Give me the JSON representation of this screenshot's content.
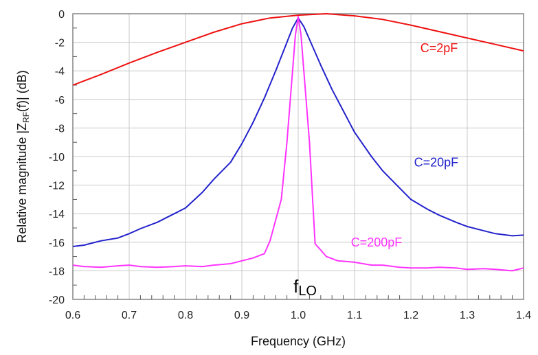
{
  "chart_data": {
    "type": "line",
    "title": "",
    "xlabel": "Frequency (GHz)",
    "ylabel": {
      "prefix": "Relative magnitude |Z",
      "subscript": "RF",
      "suffix": "(f)| (dB)"
    },
    "xlim": [
      0.6,
      1.4
    ],
    "ylim": [
      -20,
      0
    ],
    "x_ticks": [
      0.6,
      0.7,
      0.8,
      0.9,
      1.0,
      1.1,
      1.2,
      1.3,
      1.4
    ],
    "x_tick_labels": [
      "0.6",
      "0.7",
      "0.8",
      "0.9",
      "1.0",
      "1.1",
      "1.2",
      "1.3",
      "1.4"
    ],
    "y_ticks": [
      0,
      -2,
      -4,
      -6,
      -8,
      -10,
      -12,
      -14,
      -16,
      -18,
      -20
    ],
    "y_tick_labels": [
      "0",
      "-2",
      "-4",
      "-6",
      "-8",
      "-10",
      "-12",
      "-14",
      "-16",
      "-18",
      "-20"
    ],
    "grid": true,
    "annotation": {
      "main": "f",
      "sub": "LO",
      "x": 1.0
    },
    "series": [
      {
        "name": "C=2pF",
        "color": "#ee1111",
        "x": [
          0.6,
          0.65,
          0.7,
          0.75,
          0.8,
          0.85,
          0.9,
          0.95,
          1.0,
          1.05,
          1.1,
          1.15,
          1.2,
          1.25,
          1.3,
          1.35,
          1.4
        ],
        "y": [
          -5.0,
          -4.25,
          -3.45,
          -2.7,
          -2.0,
          -1.3,
          -0.7,
          -0.3,
          -0.1,
          0.0,
          -0.15,
          -0.4,
          -0.8,
          -1.25,
          -1.7,
          -2.15,
          -2.6
        ]
      },
      {
        "name": "C=20pF",
        "color": "#2222cc",
        "x": [
          0.6,
          0.62,
          0.65,
          0.68,
          0.7,
          0.72,
          0.75,
          0.78,
          0.8,
          0.83,
          0.85,
          0.88,
          0.9,
          0.92,
          0.94,
          0.96,
          0.98,
          0.99,
          1.0,
          1.01,
          1.02,
          1.04,
          1.06,
          1.08,
          1.1,
          1.13,
          1.15,
          1.18,
          1.2,
          1.23,
          1.25,
          1.28,
          1.3,
          1.33,
          1.35,
          1.38,
          1.4
        ],
        "y": [
          -16.3,
          -16.2,
          -15.9,
          -15.7,
          -15.4,
          -15.05,
          -14.6,
          -14.0,
          -13.6,
          -12.5,
          -11.6,
          -10.4,
          -9.1,
          -7.6,
          -5.9,
          -4.0,
          -2.0,
          -1.0,
          -0.3,
          -0.9,
          -1.8,
          -3.6,
          -5.3,
          -6.8,
          -8.3,
          -10.0,
          -11.0,
          -12.2,
          -13.0,
          -13.7,
          -14.1,
          -14.6,
          -14.9,
          -15.2,
          -15.4,
          -15.55,
          -15.5
        ]
      },
      {
        "name": "C=200pF",
        "color": "#ff33ff",
        "x": [
          0.6,
          0.62,
          0.65,
          0.68,
          0.7,
          0.72,
          0.75,
          0.78,
          0.8,
          0.83,
          0.85,
          0.88,
          0.9,
          0.92,
          0.94,
          0.95,
          0.97,
          0.98,
          0.99,
          0.995,
          1.0,
          1.005,
          1.01,
          1.02,
          1.03,
          1.05,
          1.07,
          1.1,
          1.13,
          1.15,
          1.18,
          1.2,
          1.23,
          1.25,
          1.28,
          1.3,
          1.33,
          1.35,
          1.38,
          1.4
        ],
        "y": [
          -17.6,
          -17.7,
          -17.75,
          -17.65,
          -17.6,
          -17.7,
          -17.75,
          -17.7,
          -17.65,
          -17.7,
          -17.6,
          -17.5,
          -17.3,
          -17.1,
          -16.8,
          -15.9,
          -13.0,
          -9.0,
          -4.0,
          -1.5,
          -0.2,
          -1.5,
          -4.0,
          -9.0,
          -16.1,
          -17.0,
          -17.3,
          -17.4,
          -17.6,
          -17.6,
          -17.75,
          -17.8,
          -17.8,
          -17.75,
          -17.8,
          -17.9,
          -17.85,
          -17.9,
          -18.0,
          -17.8
        ]
      }
    ],
    "series_labels": [
      {
        "text": "C=2pF",
        "x": 1.25,
        "y": -2.7
      },
      {
        "text": "C=20pF",
        "x": 1.245,
        "y": -10.7
      },
      {
        "text": "C=200pF",
        "x": 1.139,
        "y": -16.3
      }
    ]
  }
}
